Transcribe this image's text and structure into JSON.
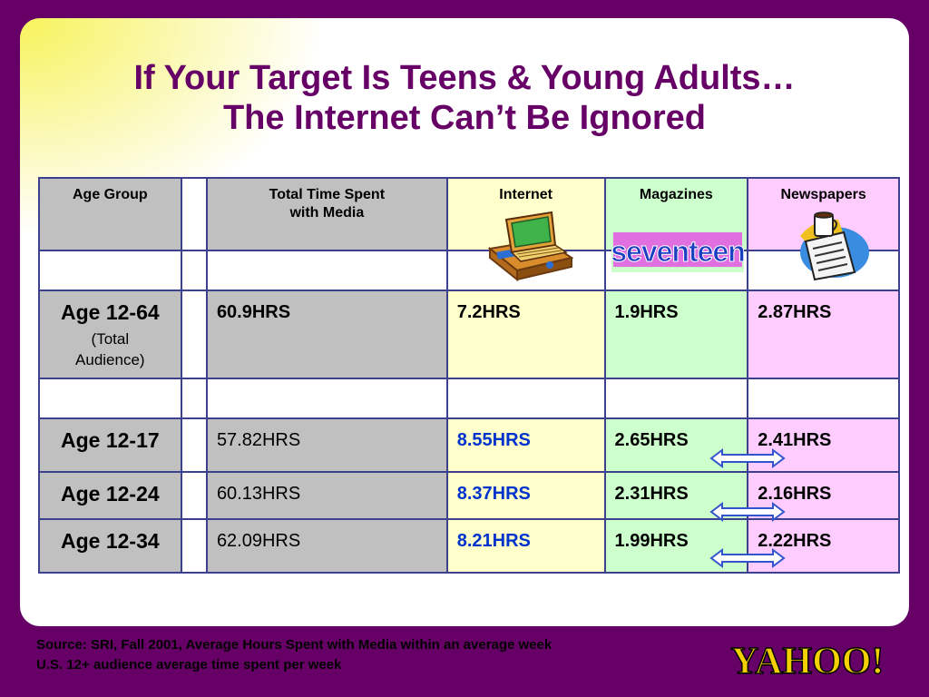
{
  "title": {
    "line1": "If Your Target Is Teens & Young Adults…",
    "line2": "The Internet Can’t Be Ignored"
  },
  "table": {
    "headers": {
      "age_group": "Age Group",
      "total_line1": "Total Time Spent",
      "total_line2": "with Media",
      "internet": "Internet",
      "magazines": "Magazines",
      "newspapers": "Newspapers"
    },
    "rows": [
      {
        "age": "Age 12-64",
        "age_sub1": "(Total",
        "age_sub2": "Audience)",
        "total": "60.9HRS",
        "internet": "7.2HRS",
        "magazines": "1.9HRS",
        "newspapers": "2.87HRS"
      },
      {
        "age": "Age 12-17",
        "total": "57.82HRS",
        "internet": "8.55HRS",
        "magazines": "2.65HRS",
        "newspapers": "2.41HRS"
      },
      {
        "age": "Age 12-24",
        "total": "60.13HRS",
        "internet": "8.37HRS",
        "magazines": "2.31HRS",
        "newspapers": "2.16HRS"
      },
      {
        "age": "Age 12-34",
        "total": "62.09HRS",
        "internet": "8.21HRS",
        "magazines": "1.99HRS",
        "newspapers": "2.22HRS"
      }
    ]
  },
  "logos": {
    "seventeen": "seventeen",
    "yahoo": "YAHOO!"
  },
  "footer": {
    "source": "Source: SRI, Fall 2001, Average Hours Spent with Media within an average week",
    "note": "U.S. 12+ audience average time spent per week"
  },
  "colors": {
    "background": "#660066",
    "title": "#660066",
    "border": "#3d3f8f",
    "internet_highlight": "#0033cc",
    "arrow": "#3355cc"
  }
}
